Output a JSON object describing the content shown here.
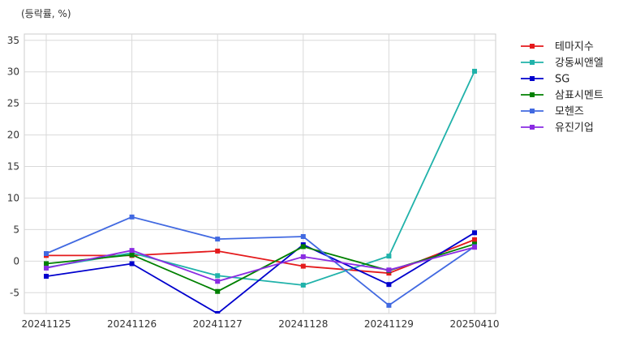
{
  "unit_label": "(등락률, %)",
  "chart_data": {
    "type": "line",
    "x": [
      "20241125",
      "20241126",
      "20241127",
      "20241128",
      "20241129",
      "20250410"
    ],
    "ylim": [
      -8.3,
      36
    ],
    "yticks": [
      -5,
      0,
      5,
      10,
      15,
      20,
      25,
      30,
      35
    ],
    "grid": true,
    "legend_position": "right, outside plot",
    "series": [
      {
        "name": "테마지수",
        "color": "#e41a1c",
        "values": [
          0.9,
          0.9,
          1.6,
          -0.8,
          -1.9,
          3.4
        ]
      },
      {
        "name": "강동씨앤엘",
        "color": "#20b2aa",
        "values": [
          -1.0,
          1.3,
          -2.3,
          -3.8,
          0.8,
          30.1
        ]
      },
      {
        "name": "SG",
        "color": "#0000cd",
        "values": [
          -2.4,
          -0.4,
          -8.3,
          2.6,
          -3.7,
          4.5
        ]
      },
      {
        "name": "삼표시멘트",
        "color": "#008000",
        "values": [
          -0.4,
          1.0,
          -4.8,
          2.3,
          -1.5,
          2.7
        ]
      },
      {
        "name": "모헨즈",
        "color": "#4169e1",
        "values": [
          1.2,
          7.0,
          3.5,
          3.9,
          -7.0,
          2.3
        ]
      },
      {
        "name": "유진기업",
        "color": "#8a2be2",
        "values": [
          -1.1,
          1.7,
          -3.2,
          0.7,
          -1.4,
          2.2
        ]
      }
    ]
  }
}
